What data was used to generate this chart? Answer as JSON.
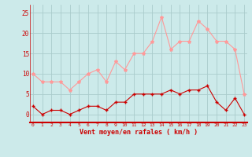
{
  "hours": [
    0,
    1,
    2,
    3,
    4,
    5,
    6,
    7,
    8,
    9,
    10,
    11,
    12,
    13,
    14,
    15,
    16,
    17,
    18,
    19,
    20,
    21,
    22,
    23
  ],
  "wind_avg": [
    2,
    0,
    1,
    1,
    0,
    1,
    2,
    2,
    1,
    3,
    3,
    5,
    5,
    5,
    5,
    6,
    5,
    6,
    6,
    7,
    3,
    1,
    4,
    0
  ],
  "wind_gust": [
    10,
    8,
    8,
    8,
    6,
    8,
    10,
    11,
    8,
    13,
    11,
    15,
    15,
    18,
    24,
    16,
    18,
    18,
    23,
    21,
    18,
    18,
    16,
    5
  ],
  "bg_color": "#cceaea",
  "grid_color": "#aacccc",
  "avg_color": "#cc0000",
  "gust_color": "#ff9999",
  "xlabel": "Vent moyen/en rafales ( km/h )",
  "xlabel_color": "#cc0000",
  "yticks": [
    0,
    5,
    10,
    15,
    20,
    25
  ],
  "ylim": [
    -2,
    27
  ],
  "xlim": [
    -0.3,
    23.3
  ]
}
